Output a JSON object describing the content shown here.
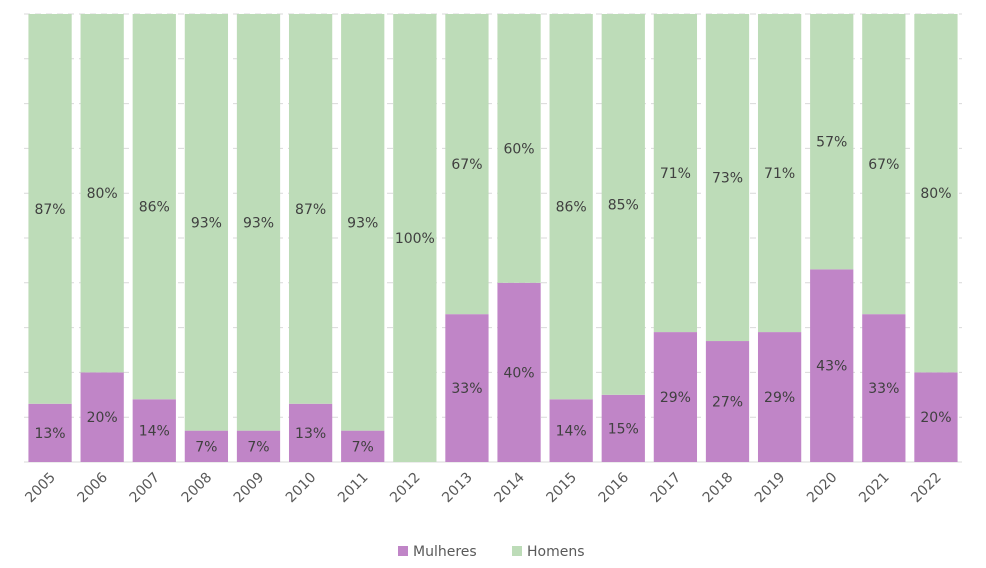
{
  "chart_data": {
    "type": "bar",
    "stacked": true,
    "percent_stacked": true,
    "categories": [
      "2005",
      "2006",
      "2007",
      "2008",
      "2009",
      "2010",
      "2011",
      "2012",
      "2013",
      "2014",
      "2015",
      "2016",
      "2017",
      "2018",
      "2019",
      "2020",
      "2021",
      "2022"
    ],
    "series": [
      {
        "name": "Mulheres",
        "color": "#c085c7",
        "values": [
          13,
          20,
          14,
          7,
          7,
          13,
          7,
          0,
          33,
          40,
          14,
          15,
          29,
          27,
          29,
          43,
          33,
          20
        ],
        "labels": [
          "13%",
          "20%",
          "14%",
          "7%",
          "7%",
          "13%",
          "7%",
          "",
          "33%",
          "40%",
          "14%",
          "15%",
          "29%",
          "27%",
          "29%",
          "43%",
          "33%",
          "20%"
        ]
      },
      {
        "name": "Homens",
        "color": "#bddcb8",
        "values": [
          87,
          80,
          86,
          93,
          93,
          87,
          93,
          100,
          67,
          60,
          86,
          85,
          71,
          73,
          71,
          57,
          67,
          80
        ],
        "labels": [
          "87%",
          "80%",
          "86%",
          "93%",
          "93%",
          "87%",
          "93%",
          "100%",
          "67%",
          "60%",
          "86%",
          "85%",
          "71%",
          "73%",
          "71%",
          "57%",
          "67%",
          "80%"
        ]
      }
    ],
    "ylim": [
      0,
      100
    ],
    "grid": true,
    "legend": "bottom"
  }
}
